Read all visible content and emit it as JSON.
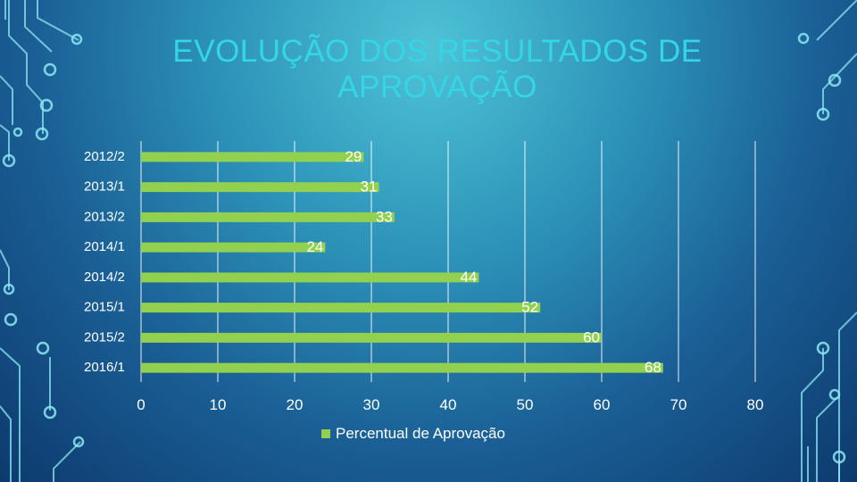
{
  "title": "EVOLUÇÃO DOS RESULTADOS DE APROVAÇÃO",
  "colors": {
    "bar": "#92d050",
    "title": "#34d6e6",
    "grid": "#ffffff",
    "decoration": "#8ee8f4"
  },
  "chart_data": {
    "type": "bar",
    "orientation": "horizontal",
    "title": "EVOLUÇÃO DOS RESULTADOS DE APROVAÇÃO",
    "categories": [
      "2012/2",
      "2013/1",
      "2013/2",
      "2014/1",
      "2014/2",
      "2015/1",
      "2015/2",
      "2016/1"
    ],
    "series": [
      {
        "name": "Percentual de Aprovação",
        "values": [
          29,
          31,
          33,
          24,
          44,
          52,
          60,
          68
        ]
      }
    ],
    "xlim": [
      0,
      80
    ],
    "xticks": [
      "0",
      "10",
      "20",
      "30",
      "40",
      "50",
      "60",
      "70",
      "80"
    ],
    "grid": "vertical",
    "legend": "bottom"
  }
}
